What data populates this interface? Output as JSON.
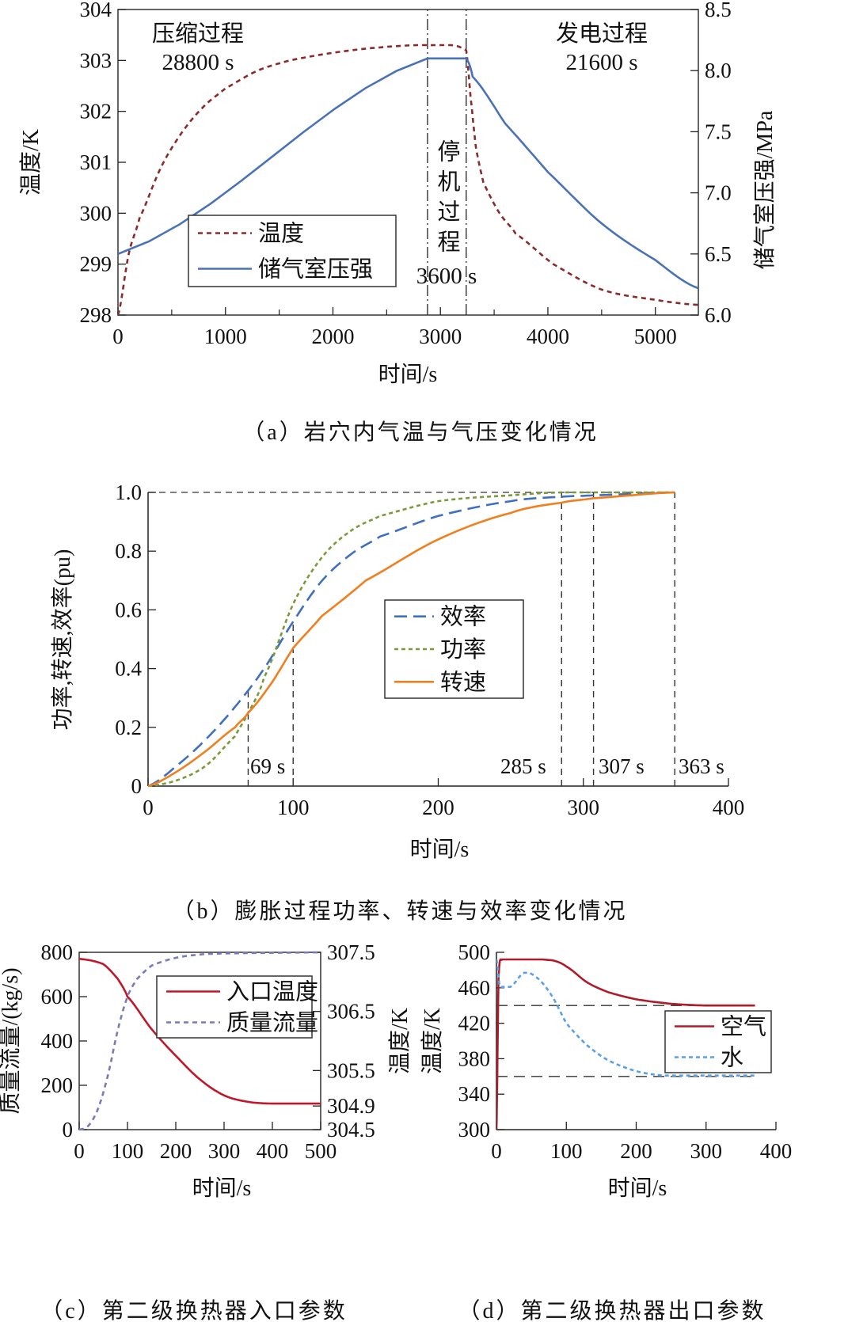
{
  "chart_data": [
    {
      "id": "a",
      "type": "line",
      "caption": "（a）岩穴内气温与气压变化情况",
      "xlabel": "时间/s",
      "ylabel": "温度/K",
      "y2label": "储气室压强/MPa",
      "xlim": [
        0,
        5400
      ],
      "ylim": [
        298,
        304
      ],
      "y2lim": [
        6.0,
        8.5
      ],
      "xticks": [
        "0",
        "1000",
        "2000",
        "3000",
        "4000",
        "5000"
      ],
      "yticks": [
        "298",
        "299",
        "300",
        "301",
        "302",
        "303",
        "304"
      ],
      "y2ticks": [
        "6.0",
        "6.5",
        "7.0",
        "7.5",
        "8.0",
        "8.5"
      ],
      "annotations": [
        {
          "text": "压缩过程",
          "sub": "28800 s"
        },
        {
          "text": "发电过程",
          "sub": "21600 s"
        },
        {
          "text": "停机过程",
          "sub": "3600 s"
        }
      ],
      "vlines": [
        2880,
        3240
      ],
      "legend": "center-left",
      "series": [
        {
          "name": "温度",
          "axis": "left",
          "color": "#8b2a2a",
          "style": "dashed",
          "points": [
            [
              0,
              298
            ],
            [
              100,
              299.2
            ],
            [
              200,
              299.9
            ],
            [
              400,
              300.9
            ],
            [
              600,
              301.6
            ],
            [
              800,
              302.1
            ],
            [
              1000,
              302.45
            ],
            [
              1300,
              302.8
            ],
            [
              1600,
              303.0
            ],
            [
              2000,
              303.15
            ],
            [
              2400,
              303.25
            ],
            [
              2880,
              303.3
            ],
            [
              3240,
              303.2
            ],
            [
              3280,
              302.3
            ],
            [
              3330,
              301.3
            ],
            [
              3400,
              300.6
            ],
            [
              3550,
              300.0
            ],
            [
              3700,
              299.6
            ],
            [
              4050,
              299.0
            ],
            [
              4500,
              298.5
            ],
            [
              5000,
              298.3
            ],
            [
              5400,
              298.2
            ]
          ]
        },
        {
          "name": "储气室压强",
          "axis": "right",
          "color": "#4a72b8",
          "style": "solid",
          "points": [
            [
              0,
              6.5
            ],
            [
              2880,
              8.1
            ],
            [
              3240,
              8.1
            ],
            [
              3300,
              7.95
            ],
            [
              3600,
              7.57
            ],
            [
              4000,
              7.17
            ],
            [
              4500,
              6.75
            ],
            [
              5000,
              6.45
            ],
            [
              5400,
              6.22
            ]
          ]
        }
      ]
    },
    {
      "id": "b",
      "type": "line",
      "caption": "（b）膨胀过程功率、转速与效率变化情况",
      "xlabel": "时间/s",
      "ylabel": "功率,转速,效率(pu)",
      "xlim": [
        0,
        400
      ],
      "ylim": [
        0,
        1.0
      ],
      "xticks": [
        "0",
        "100",
        "200",
        "300",
        "400"
      ],
      "yticks": [
        "0",
        "0.2",
        "0.4",
        "0.6",
        "0.8",
        "1.0"
      ],
      "vlines": [
        69,
        100,
        285,
        307,
        363
      ],
      "vline_labels": [
        "69 s",
        "285 s",
        "307 s",
        "363 s"
      ],
      "legend": "center-right",
      "series": [
        {
          "name": "效率",
          "color": "#3f6fc0",
          "style": "longdash",
          "points": [
            [
              0,
              0
            ],
            [
              20,
              0.07
            ],
            [
              40,
              0.16
            ],
            [
              60,
              0.27
            ],
            [
              80,
              0.4
            ],
            [
              100,
              0.56
            ],
            [
              120,
              0.7
            ],
            [
              140,
              0.79
            ],
            [
              160,
              0.85
            ],
            [
              200,
              0.92
            ],
            [
              250,
              0.97
            ],
            [
              285,
              0.985
            ],
            [
              307,
              0.99
            ],
            [
              363,
              1.0
            ]
          ]
        },
        {
          "name": "功率",
          "color": "#7a9a3a",
          "style": "dotted",
          "points": [
            [
              0,
              0
            ],
            [
              20,
              0.02
            ],
            [
              40,
              0.07
            ],
            [
              60,
              0.17
            ],
            [
              69,
              0.25
            ],
            [
              80,
              0.37
            ],
            [
              100,
              0.62
            ],
            [
              120,
              0.78
            ],
            [
              140,
              0.87
            ],
            [
              160,
              0.92
            ],
            [
              200,
              0.97
            ],
            [
              250,
              0.99
            ],
            [
              285,
              1.0
            ],
            [
              363,
              1.0
            ]
          ]
        },
        {
          "name": "转速",
          "color": "#f07f1f",
          "style": "solid",
          "points": [
            [
              0,
              0
            ],
            [
              20,
              0.05
            ],
            [
              40,
              0.12
            ],
            [
              60,
              0.2
            ],
            [
              69,
              0.25
            ],
            [
              85,
              0.35
            ],
            [
              100,
              0.47
            ],
            [
              120,
              0.58
            ],
            [
              150,
              0.7
            ],
            [
              200,
              0.84
            ],
            [
              250,
              0.93
            ],
            [
              285,
              0.965
            ],
            [
              307,
              0.98
            ],
            [
              363,
              1.0
            ]
          ]
        }
      ]
    },
    {
      "id": "c",
      "type": "line",
      "caption": "（c）第二级换热器入口参数",
      "xlabel": "时间/s",
      "ylabel": "质量流量/(kg/s)",
      "y2label": "温度/K",
      "xlim": [
        0,
        500
      ],
      "ylim": [
        0,
        800
      ],
      "y2lim": [
        304.5,
        307.5
      ],
      "xticks": [
        "0",
        "100",
        "200",
        "300",
        "400",
        "500"
      ],
      "yticks": [
        "0",
        "200",
        "400",
        "600",
        "800"
      ],
      "y2ticks": [
        "304.5",
        "304.9",
        "305.5",
        "306.5",
        "307.5"
      ],
      "legend": "top-right",
      "series": [
        {
          "name": "入口温度",
          "axis": "right",
          "color": "#c0182a",
          "style": "solid",
          "points": [
            [
              0,
              307.39
            ],
            [
              50,
              307.3
            ],
            [
              80,
              307.05
            ],
            [
              100,
              306.75
            ],
            [
              150,
              306.2
            ],
            [
              200,
              305.75
            ],
            [
              250,
              305.35
            ],
            [
              300,
              305.08
            ],
            [
              350,
              304.97
            ],
            [
              400,
              304.94
            ],
            [
              500,
              304.94
            ]
          ]
        },
        {
          "name": "质量流量",
          "axis": "left",
          "color": "#7a7ab8",
          "style": "dashed",
          "points": [
            [
              0,
              0
            ],
            [
              20,
              20
            ],
            [
              40,
              100
            ],
            [
              60,
              250
            ],
            [
              80,
              450
            ],
            [
              100,
              600
            ],
            [
              120,
              680
            ],
            [
              150,
              740
            ],
            [
              200,
              775
            ],
            [
              250,
              790
            ],
            [
              300,
              795
            ],
            [
              500,
              800
            ]
          ]
        }
      ]
    },
    {
      "id": "d",
      "type": "line",
      "caption": "（d）第二级换热器出口参数",
      "xlabel": "时间/s",
      "ylabel": "温度/K",
      "xlim": [
        0,
        400
      ],
      "ylim": [
        300,
        500
      ],
      "xticks": [
        "0",
        "100",
        "200",
        "300",
        "400"
      ],
      "yticks": [
        "300",
        "340",
        "380",
        "420",
        "460",
        "500"
      ],
      "hlines": [
        440,
        360
      ],
      "legend": "center-right",
      "series": [
        {
          "name": "空气",
          "color": "#b01b2a",
          "style": "solid",
          "points": [
            [
              0,
              300
            ],
            [
              3,
              470
            ],
            [
              8,
              492
            ],
            [
              80,
              491
            ],
            [
              100,
              484
            ],
            [
              130,
              466
            ],
            [
              160,
              455
            ],
            [
              200,
              447
            ],
            [
              250,
              442
            ],
            [
              300,
              440
            ],
            [
              370,
              440
            ]
          ]
        },
        {
          "name": "水",
          "color": "#5aa0e6",
          "style": "dotted",
          "points": [
            [
              0,
              492
            ],
            [
              5,
              461
            ],
            [
              20,
              461
            ],
            [
              40,
              477
            ],
            [
              60,
              470
            ],
            [
              80,
              450
            ],
            [
              100,
              420
            ],
            [
              130,
              395
            ],
            [
              160,
              378
            ],
            [
              200,
              366
            ],
            [
              240,
              361
            ],
            [
              370,
              361
            ]
          ]
        }
      ]
    }
  ]
}
